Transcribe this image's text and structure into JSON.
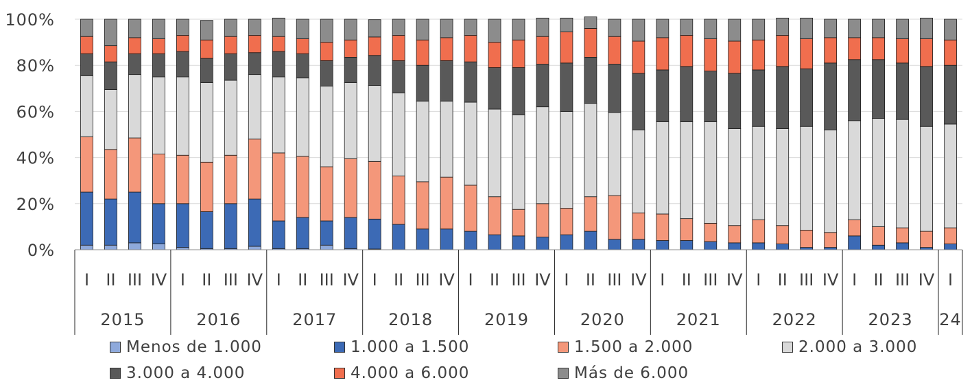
{
  "chart_data": {
    "type": "bar",
    "stacked": true,
    "normalized": true,
    "yticks": [
      "0%",
      "20%",
      "40%",
      "60%",
      "80%",
      "100%"
    ],
    "ylim": [
      0,
      100
    ],
    "grid": true,
    "legend_position": "bottom",
    "quarters": [
      "I",
      "II",
      "III",
      "IV",
      "I",
      "II",
      "III",
      "IV",
      "I",
      "II",
      "III",
      "IV",
      "I",
      "II",
      "III",
      "IV",
      "I",
      "II",
      "III",
      "IV",
      "I",
      "II",
      "III",
      "IV",
      "I",
      "II",
      "III",
      "IV",
      "I",
      "II",
      "III",
      "IV",
      "I",
      "II",
      "III",
      "IV",
      "I"
    ],
    "years": [
      {
        "label": "2015",
        "count": 4
      },
      {
        "label": "2016",
        "count": 4
      },
      {
        "label": "2017",
        "count": 4
      },
      {
        "label": "2018",
        "count": 4
      },
      {
        "label": "2019",
        "count": 4
      },
      {
        "label": "2020",
        "count": 4
      },
      {
        "label": "2021",
        "count": 4
      },
      {
        "label": "2022",
        "count": 4
      },
      {
        "label": "2023",
        "count": 4
      },
      {
        "label": "24",
        "count": 1
      }
    ],
    "colors": [
      "#8EA9DB",
      "#3C6AB5",
      "#F4977A",
      "#D9D9D9",
      "#595959",
      "#F06E4E",
      "#8C8C8C"
    ],
    "series": [
      {
        "name": "Menos de 1.000",
        "values": [
          2,
          2,
          3,
          2.5,
          1,
          0.5,
          0.5,
          1.5,
          0.5,
          0.5,
          2,
          0.5,
          0.3,
          0,
          0,
          0,
          0,
          0,
          0,
          0,
          0,
          0,
          0,
          0,
          0,
          0,
          0,
          0,
          0,
          0,
          0,
          0,
          0,
          0,
          0,
          0,
          0
        ]
      },
      {
        "name": "1.000 a 1.500",
        "values": [
          23,
          20,
          22,
          17.5,
          19,
          16,
          19.5,
          20.5,
          12,
          13.5,
          10.5,
          13.5,
          13,
          11,
          9,
          9,
          8,
          6.5,
          6,
          5.5,
          6.5,
          8,
          4.5,
          4.5,
          4,
          4,
          3.5,
          3,
          3,
          2.5,
          1,
          1,
          6,
          2,
          3,
          1,
          2.5
        ]
      },
      {
        "name": "1.500 a 2.000",
        "values": [
          24,
          21.5,
          23.5,
          21.5,
          21,
          21.5,
          21,
          26,
          29.5,
          26.5,
          23.5,
          25.5,
          25,
          21,
          20.5,
          22.5,
          20,
          16.5,
          11.5,
          14.5,
          11.5,
          15,
          19,
          11.5,
          11.5,
          9.5,
          8,
          7.5,
          10,
          8,
          7.5,
          6.5,
          7,
          8,
          6.5,
          7,
          7
        ]
      },
      {
        "name": "2.000 a 3.000",
        "values": [
          26.5,
          26,
          27.5,
          33.5,
          34,
          34.5,
          32.5,
          28,
          33,
          34,
          35,
          33,
          33,
          36,
          35,
          33,
          36,
          38,
          41,
          42,
          42,
          40.5,
          36,
          36,
          40,
          42,
          44,
          42,
          40.5,
          42,
          45,
          44.5,
          43,
          47,
          47,
          45.5,
          45
        ]
      },
      {
        "name": "3.000 a 4.000",
        "values": [
          9.5,
          12,
          9,
          10,
          11,
          10.5,
          11.5,
          9.5,
          11,
          10.5,
          11,
          11,
          13,
          14,
          15.5,
          17.5,
          17.5,
          18,
          20.5,
          18.5,
          21,
          20,
          21,
          24.5,
          22.5,
          24,
          22,
          24,
          24.5,
          27,
          25,
          29,
          26.5,
          25.5,
          24.5,
          26,
          25.5
        ]
      },
      {
        "name": "4.000 a 6.000",
        "values": [
          7.5,
          7,
          7,
          6.5,
          7,
          8,
          7.5,
          7.5,
          6.5,
          6.5,
          8,
          7.5,
          8,
          11,
          11,
          10,
          11.5,
          11,
          12,
          12,
          13.5,
          12.5,
          12,
          14,
          14,
          13.5,
          14,
          14,
          13,
          13.5,
          13,
          11,
          9.5,
          9.5,
          10.5,
          12,
          11
        ]
      },
      {
        "name": "Más de 6.000",
        "values": [
          7.5,
          11.5,
          8,
          8.5,
          7,
          8.5,
          7.5,
          7,
          8,
          8.5,
          10,
          9,
          7.5,
          7,
          9,
          8,
          7,
          10,
          9,
          8,
          6,
          5,
          7.5,
          9.5,
          8,
          7,
          8.5,
          9.5,
          9,
          7.5,
          9,
          8,
          8,
          8,
          8.5,
          9,
          9
        ]
      }
    ],
    "legend_layout": [
      {
        "col": 0,
        "row": 0
      },
      {
        "col": 1,
        "row": 0
      },
      {
        "col": 2,
        "row": 0
      },
      {
        "col": 3,
        "row": 0
      },
      {
        "col": 0,
        "row": 1
      },
      {
        "col": 1,
        "row": 1
      },
      {
        "col": 2,
        "row": 1
      }
    ]
  }
}
